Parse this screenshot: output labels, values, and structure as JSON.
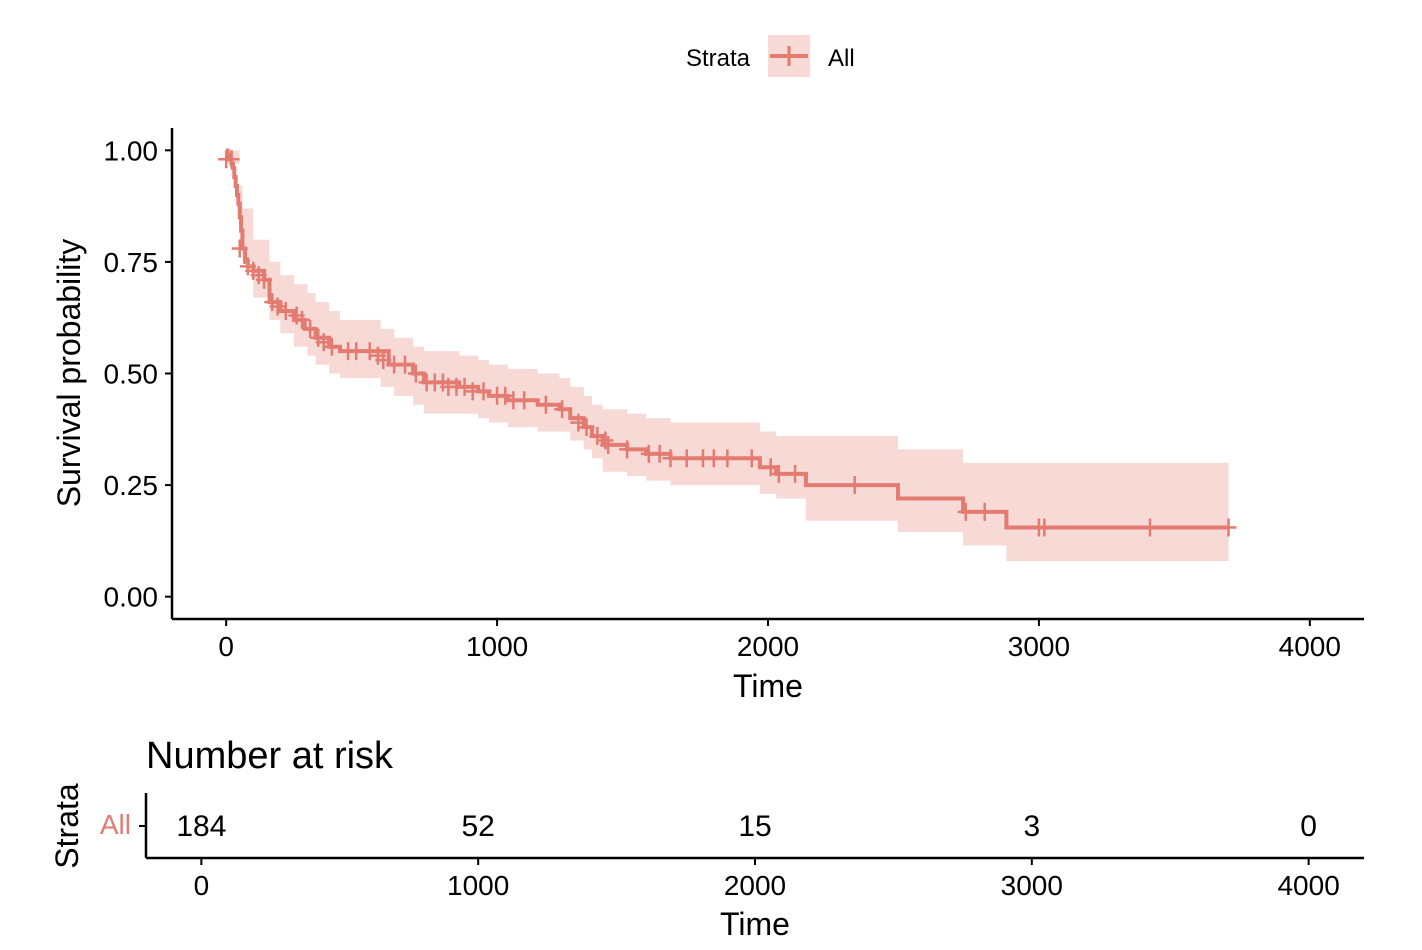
{
  "chart_data": [
    {
      "type": "line",
      "title": "",
      "xlabel": "Time",
      "ylabel": "Survival probability",
      "xlim": [
        -200,
        4200
      ],
      "ylim": [
        -0.05,
        1.05
      ],
      "xticks": [
        "0",
        "1000",
        "2000",
        "3000",
        "4000"
      ],
      "xtick_values": [
        0,
        1000,
        2000,
        3000,
        4000
      ],
      "yticks": [
        "0.00",
        "0.25",
        "0.50",
        "0.75",
        "1.00"
      ],
      "ytick_values": [
        0,
        0.25,
        0.5,
        0.75,
        1
      ],
      "grid": false,
      "legend": {
        "position": "top",
        "title": "Strata",
        "entries": [
          "All"
        ]
      },
      "color": "#E37B71",
      "band_color": "#F7D9D6",
      "series": [
        {
          "name": "All",
          "step": [
            [
              0,
              1.0
            ],
            [
              5,
              0.99
            ],
            [
              10,
              0.98
            ],
            [
              20,
              0.97
            ],
            [
              25,
              0.96
            ],
            [
              30,
              0.94
            ],
            [
              35,
              0.92
            ],
            [
              40,
              0.9
            ],
            [
              45,
              0.88
            ],
            [
              50,
              0.85
            ],
            [
              55,
              0.82
            ],
            [
              60,
              0.78
            ],
            [
              70,
              0.75
            ],
            [
              80,
              0.74
            ],
            [
              100,
              0.73
            ],
            [
              140,
              0.71
            ],
            [
              160,
              0.66
            ],
            [
              200,
              0.64
            ],
            [
              250,
              0.62
            ],
            [
              290,
              0.6
            ],
            [
              330,
              0.58
            ],
            [
              380,
              0.56
            ],
            [
              420,
              0.55
            ],
            [
              600,
              0.52
            ],
            [
              690,
              0.5
            ],
            [
              730,
              0.48
            ],
            [
              860,
              0.47
            ],
            [
              930,
              0.46
            ],
            [
              970,
              0.45
            ],
            [
              1040,
              0.44
            ],
            [
              1150,
              0.43
            ],
            [
              1230,
              0.42
            ],
            [
              1270,
              0.4
            ],
            [
              1320,
              0.38
            ],
            [
              1350,
              0.36
            ],
            [
              1390,
              0.34
            ],
            [
              1480,
              0.33
            ],
            [
              1550,
              0.32
            ],
            [
              1640,
              0.31
            ],
            [
              1970,
              0.29
            ],
            [
              2030,
              0.275
            ],
            [
              2140,
              0.25
            ],
            [
              2480,
              0.22
            ],
            [
              2720,
              0.19
            ],
            [
              2880,
              0.155
            ],
            [
              3700,
              0.155
            ]
          ],
          "lower": [
            [
              0,
              0.97
            ],
            [
              50,
              0.8
            ],
            [
              60,
              0.75
            ],
            [
              100,
              0.67
            ],
            [
              160,
              0.62
            ],
            [
              200,
              0.59
            ],
            [
              250,
              0.56
            ],
            [
              300,
              0.54
            ],
            [
              330,
              0.52
            ],
            [
              380,
              0.5
            ],
            [
              420,
              0.49
            ],
            [
              570,
              0.47
            ],
            [
              620,
              0.45
            ],
            [
              690,
              0.43
            ],
            [
              730,
              0.41
            ],
            [
              860,
              0.41
            ],
            [
              930,
              0.4
            ],
            [
              970,
              0.39
            ],
            [
              1040,
              0.38
            ],
            [
              1150,
              0.37
            ],
            [
              1230,
              0.37
            ],
            [
              1270,
              0.35
            ],
            [
              1320,
              0.33
            ],
            [
              1350,
              0.31
            ],
            [
              1390,
              0.28
            ],
            [
              1480,
              0.27
            ],
            [
              1550,
              0.26
            ],
            [
              1640,
              0.25
            ],
            [
              1970,
              0.23
            ],
            [
              2030,
              0.22
            ],
            [
              2140,
              0.17
            ],
            [
              2480,
              0.145
            ],
            [
              2720,
              0.115
            ],
            [
              2880,
              0.08
            ],
            [
              3700,
              0.08
            ]
          ],
          "upper": [
            [
              0,
              1.0
            ],
            [
              50,
              0.92
            ],
            [
              60,
              0.87
            ],
            [
              100,
              0.8
            ],
            [
              160,
              0.75
            ],
            [
              200,
              0.72
            ],
            [
              250,
              0.7
            ],
            [
              300,
              0.68
            ],
            [
              330,
              0.66
            ],
            [
              380,
              0.64
            ],
            [
              420,
              0.62
            ],
            [
              570,
              0.6
            ],
            [
              620,
              0.58
            ],
            [
              690,
              0.56
            ],
            [
              730,
              0.55
            ],
            [
              860,
              0.54
            ],
            [
              930,
              0.53
            ],
            [
              970,
              0.52
            ],
            [
              1040,
              0.51
            ],
            [
              1150,
              0.5
            ],
            [
              1230,
              0.49
            ],
            [
              1270,
              0.47
            ],
            [
              1320,
              0.45
            ],
            [
              1350,
              0.43
            ],
            [
              1390,
              0.42
            ],
            [
              1480,
              0.41
            ],
            [
              1550,
              0.4
            ],
            [
              1640,
              0.39
            ],
            [
              1970,
              0.37
            ],
            [
              2030,
              0.36
            ],
            [
              2140,
              0.36
            ],
            [
              2480,
              0.33
            ],
            [
              2720,
              0.3
            ],
            [
              2880,
              0.3
            ],
            [
              3700,
              0.3
            ]
          ],
          "censored": [
            [
              0,
              0.98
            ],
            [
              20,
              0.98
            ],
            [
              50,
              0.78
            ],
            [
              80,
              0.74
            ],
            [
              100,
              0.73
            ],
            [
              120,
              0.72
            ],
            [
              140,
              0.71
            ],
            [
              170,
              0.66
            ],
            [
              190,
              0.65
            ],
            [
              220,
              0.64
            ],
            [
              260,
              0.63
            ],
            [
              280,
              0.62
            ],
            [
              310,
              0.6
            ],
            [
              340,
              0.58
            ],
            [
              360,
              0.57
            ],
            [
              390,
              0.56
            ],
            [
              450,
              0.55
            ],
            [
              480,
              0.55
            ],
            [
              530,
              0.55
            ],
            [
              560,
              0.54
            ],
            [
              580,
              0.53
            ],
            [
              620,
              0.52
            ],
            [
              660,
              0.52
            ],
            [
              700,
              0.5
            ],
            [
              740,
              0.48
            ],
            [
              770,
              0.48
            ],
            [
              800,
              0.48
            ],
            [
              820,
              0.47
            ],
            [
              850,
              0.47
            ],
            [
              880,
              0.47
            ],
            [
              910,
              0.46
            ],
            [
              950,
              0.46
            ],
            [
              1000,
              0.45
            ],
            [
              1030,
              0.45
            ],
            [
              1060,
              0.44
            ],
            [
              1100,
              0.44
            ],
            [
              1180,
              0.43
            ],
            [
              1240,
              0.42
            ],
            [
              1300,
              0.39
            ],
            [
              1330,
              0.38
            ],
            [
              1370,
              0.36
            ],
            [
              1400,
              0.35
            ],
            [
              1410,
              0.34
            ],
            [
              1480,
              0.33
            ],
            [
              1560,
              0.32
            ],
            [
              1600,
              0.32
            ],
            [
              1640,
              0.31
            ],
            [
              1700,
              0.31
            ],
            [
              1760,
              0.31
            ],
            [
              1800,
              0.31
            ],
            [
              1850,
              0.31
            ],
            [
              1940,
              0.31
            ],
            [
              2010,
              0.29
            ],
            [
              2040,
              0.275
            ],
            [
              2100,
              0.275
            ],
            [
              2320,
              0.25
            ],
            [
              2730,
              0.19
            ],
            [
              2800,
              0.19
            ],
            [
              3000,
              0.155
            ],
            [
              3020,
              0.155
            ],
            [
              3410,
              0.155
            ],
            [
              3700,
              0.155
            ]
          ]
        }
      ]
    },
    {
      "type": "table",
      "title": "Number at risk",
      "xlabel": "Time",
      "ylabel": "Strata",
      "xlim": [
        -200,
        4200
      ],
      "xticks": [
        "0",
        "1000",
        "2000",
        "3000",
        "4000"
      ],
      "xtick_values": [
        0,
        1000,
        2000,
        3000,
        4000
      ],
      "strata": [
        "All"
      ],
      "rows": [
        {
          "name": "All",
          "times": [
            0,
            1000,
            2000,
            3000,
            4000
          ],
          "values": [
            "184",
            "52",
            "15",
            "3",
            "0"
          ]
        }
      ]
    }
  ]
}
